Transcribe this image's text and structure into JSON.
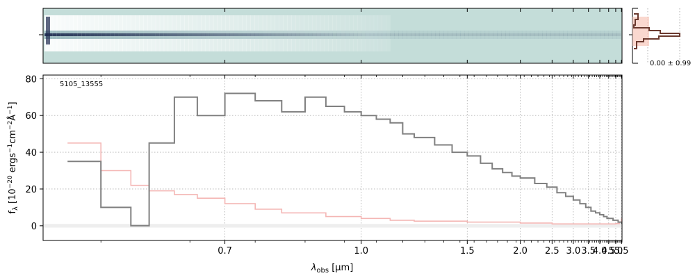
{
  "chart_data": {
    "type": "line",
    "object_label": "5105_13555",
    "xlabel": "λ_obs [μm]",
    "ylabel": "f_λ [10^−20 ergs^−1cm^−2Å^−1]",
    "x_scale": "reciprocal",
    "xlim": [
      0.5,
      5.55
    ],
    "ylim": [
      -8,
      82
    ],
    "xticks": [
      0.7,
      1.0,
      1.5,
      2.0,
      2.5,
      3.0,
      3.5,
      4.0,
      4.5,
      5.0,
      5.5
    ],
    "xtick_labels": [
      "0.7",
      "1.0",
      "1.5",
      "2.0",
      "2.5",
      "3.0",
      "3.5",
      "4.0",
      "4.5",
      "5.0",
      "5.5"
    ],
    "yticks": [
      0,
      20,
      40,
      60,
      80
    ],
    "ytick_labels": [
      "0",
      "20",
      "40",
      "60",
      "80"
    ],
    "grid": true,
    "series": [
      {
        "role": "flux",
        "color": "#808080",
        "x": [
          0.52,
          0.55,
          0.58,
          0.6,
          0.63,
          0.66,
          0.7,
          0.75,
          0.8,
          0.85,
          0.9,
          0.95,
          1.0,
          1.05,
          1.1,
          1.15,
          1.2,
          1.3,
          1.4,
          1.5,
          1.6,
          1.7,
          1.8,
          1.9,
          2.0,
          2.2,
          2.4,
          2.6,
          2.8,
          3.0,
          3.2,
          3.4,
          3.6,
          3.8,
          4.0,
          4.2,
          4.4,
          4.6,
          4.8,
          5.0,
          5.2,
          5.4,
          5.5
        ],
        "y": [
          35,
          10,
          0,
          45,
          70,
          60,
          72,
          68,
          62,
          70,
          65,
          62,
          60,
          58,
          56,
          50,
          48,
          44,
          40,
          38,
          34,
          31,
          29,
          27,
          26,
          23,
          21,
          18,
          16,
          14,
          12,
          10,
          8,
          7,
          6,
          5,
          4,
          4,
          3,
          3,
          2,
          2,
          1
        ]
      },
      {
        "role": "error",
        "color": "#f4b6b4",
        "x": [
          0.52,
          0.55,
          0.58,
          0.6,
          0.63,
          0.66,
          0.7,
          0.75,
          0.8,
          0.9,
          1.0,
          1.1,
          1.2,
          1.5,
          2.0,
          2.5,
          3.0,
          3.5,
          4.0,
          4.5,
          5.0,
          5.3,
          5.5
        ],
        "y": [
          45,
          30,
          22,
          19,
          17,
          15,
          12,
          9,
          7,
          5,
          4,
          3,
          2.5,
          2,
          1.5,
          1,
          1,
          1,
          1,
          1,
          1.2,
          2,
          4
        ]
      }
    ],
    "spectrum_2d": {
      "colormap": [
        "#c4ddd9",
        "#ffffff",
        "#8fb1b6",
        "#1e2a4f"
      ],
      "trace_color": "#202845"
    },
    "profile_panel": {
      "label": "0.00 ± 0.99",
      "line_color": "#6b3a2f",
      "fill_color": "#f8c7bb"
    }
  }
}
